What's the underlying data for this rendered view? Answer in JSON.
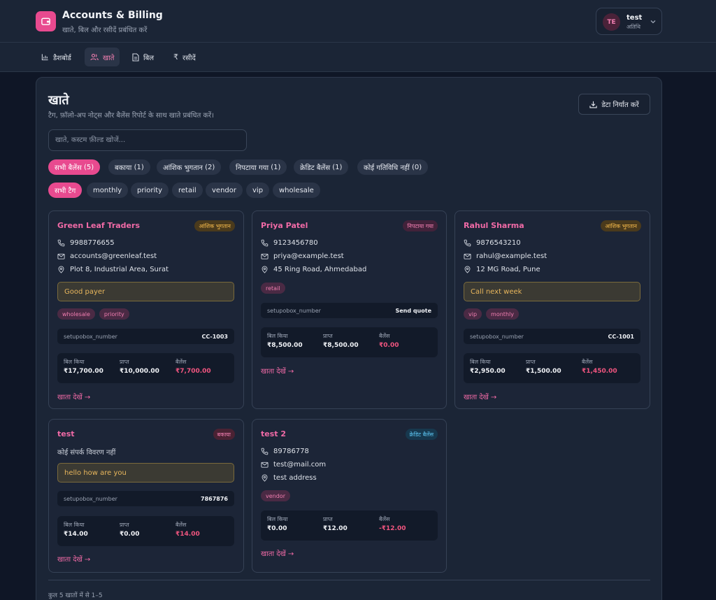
{
  "app": {
    "title": "Accounts & Billing",
    "subtitle": "खाते, बिल और रसीदें प्रबंधित करें",
    "icon": "wallet-icon",
    "accent": "#e84a8f"
  },
  "user": {
    "initials": "TE",
    "name": "test",
    "role": "अतिथि"
  },
  "nav": [
    {
      "label": "डैशबोर्ड",
      "icon": "chart-icon"
    },
    {
      "label": "खाते",
      "icon": "users-icon",
      "active": true
    },
    {
      "label": "बिल",
      "icon": "document-icon"
    },
    {
      "label": "रसीदें",
      "icon": "rupee-icon"
    }
  ],
  "page": {
    "title": "खाते",
    "subtitle": "टैग, फ़ॉलो-अप नोट्स और बैलेंस रिपोर्ट के साथ खाते प्रबंधित करें।",
    "export_label": "डेटा निर्यात करें",
    "search_placeholder": "खाते, कस्टम फ़ील्ड खोजें..."
  },
  "balance_filters": [
    {
      "label": "सभी बैलेंस",
      "count": "(5)",
      "active": true
    },
    {
      "label": "बकाया",
      "count": "(1)"
    },
    {
      "label": "आंशिक भुगतान",
      "count": "(2)"
    },
    {
      "label": "निपटाया गया",
      "count": "(1)"
    },
    {
      "label": "क्रेडिट बैलेंस",
      "count": "(1)"
    },
    {
      "label": "कोई गतिविधि नहीं",
      "count": "(0)"
    }
  ],
  "tag_filters": [
    {
      "label": "सभी टैग",
      "active": true
    },
    {
      "label": "monthly"
    },
    {
      "label": "priority"
    },
    {
      "label": "retail"
    },
    {
      "label": "vendor"
    },
    {
      "label": "vip"
    },
    {
      "label": "wholesale"
    }
  ],
  "summary_labels": {
    "billed": "बिल किया",
    "received": "प्राप्त",
    "balance": "बैलेंस"
  },
  "view_label": "खाता देखें →",
  "accounts": [
    {
      "name": "Green Leaf Traders",
      "status": "आंशिक भुगतान",
      "phone": "9988776655",
      "email": "accounts@greenleaf.test",
      "address": "Plot 8, Industrial Area, Surat",
      "note": "Good payer",
      "tags": [
        "wholesale",
        "priority"
      ],
      "field_key": "setupobox_number",
      "field_value": "CC-1003",
      "billed": "₹17,700.00",
      "received": "₹10,000.00",
      "balance": "₹7,700.00"
    },
    {
      "name": "Priya Patel",
      "status": "निपटाया गया",
      "phone": "9123456780",
      "email": "priya@example.test",
      "address": "45 Ring Road, Ahmedabad",
      "tags": [
        "retail"
      ],
      "field_key": "setupobox_number",
      "field_value": "Send quote",
      "billed": "₹8,500.00",
      "received": "₹8,500.00",
      "balance": "₹0.00"
    },
    {
      "name": "Rahul Sharma",
      "status": "आंशिक भुगतान",
      "phone": "9876543210",
      "email": "rahul@example.test",
      "address": "12 MG Road, Pune",
      "note": "Call next week",
      "tags": [
        "vip",
        "monthly"
      ],
      "field_key": "setupobox_number",
      "field_value": "CC-1001",
      "billed": "₹2,950.00",
      "received": "₹1,500.00",
      "balance": "₹1,450.00"
    },
    {
      "name": "test",
      "status": "बकाया",
      "no_contact": "कोई संपर्क विवरण नहीं",
      "note": "hello how are you",
      "field_key": "setupobox_number",
      "field_value": "7867876",
      "billed": "₹14.00",
      "received": "₹0.00",
      "balance": "₹14.00"
    },
    {
      "name": "test 2",
      "status": "क्रेडिट बैलेंस",
      "phone": "89786778",
      "email": "test@mail.com",
      "address": "test address",
      "tags": [
        "vendor"
      ],
      "billed": "₹0.00",
      "received": "₹12.00",
      "balance": "-₹12.00"
    }
  ],
  "footer": {
    "count_text": "कुल 5 खातों में से 1–5"
  }
}
